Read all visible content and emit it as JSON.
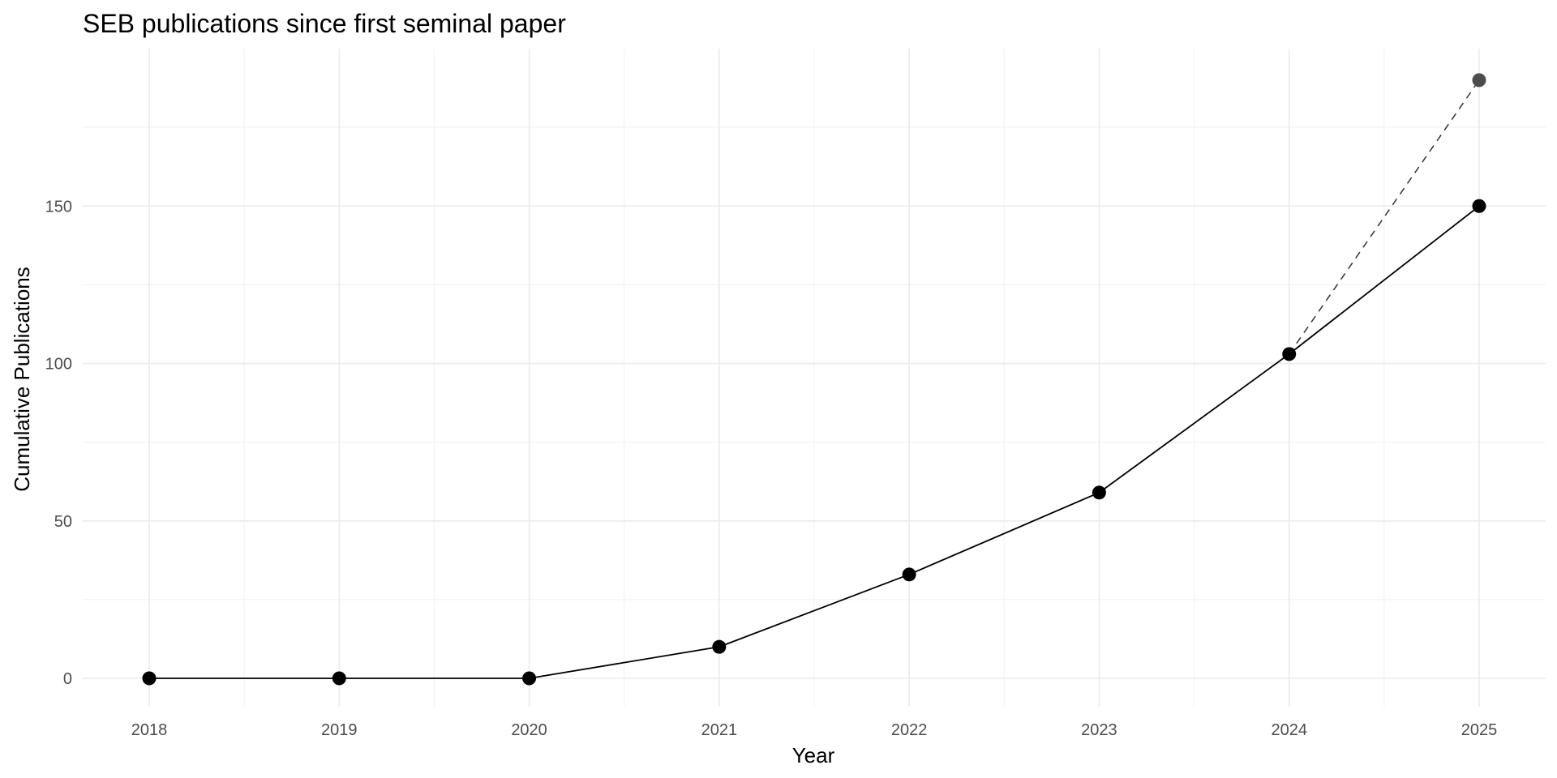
{
  "chart_data": {
    "type": "line",
    "title": "SEB publications since first seminal paper",
    "xlabel": "Year",
    "ylabel": "Cumulative Publications",
    "x": [
      2018,
      2019,
      2020,
      2021,
      2022,
      2023,
      2024,
      2025
    ],
    "x_tick_labels": [
      "2018",
      "2019",
      "2020",
      "2021",
      "2022",
      "2023",
      "2024",
      "2025"
    ],
    "y_ticks": [
      0,
      50,
      100,
      150
    ],
    "y_tick_labels": [
      "0",
      "50",
      "100",
      "150"
    ],
    "xlim": [
      2017.65,
      2025.35
    ],
    "ylim": [
      -9,
      200
    ],
    "grid": true,
    "legend": "none",
    "series": [
      {
        "x": [
          2018,
          2019,
          2020,
          2021,
          2022,
          2023,
          2024,
          2025
        ],
        "values": [
          0,
          0,
          0,
          10,
          33,
          59,
          103,
          150
        ],
        "color": "#000000",
        "line_style": "solid",
        "marker": "filled-circle"
      },
      {
        "x": [
          2024,
          2025
        ],
        "values": [
          103,
          190
        ],
        "color": "#4d4d4d",
        "line_style": "dashed",
        "marker": "filled-circle"
      }
    ]
  }
}
